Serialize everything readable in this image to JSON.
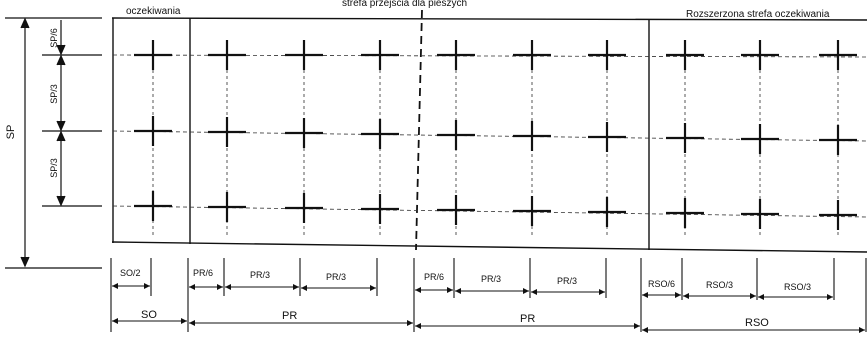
{
  "headings": {
    "waiting_zone": "oczekiwania",
    "crossing_zone": "strefa przejścia dla pieszych",
    "extended_zone": "Rozszerzona strefa oczekiwania"
  },
  "left_dimensions": {
    "total": "SP",
    "top": "SP/6",
    "middle": "SP/3",
    "bottom": "SP/3"
  },
  "bottom_small_dimensions": {
    "so_half": "SO/2",
    "pr_sixth_a": "PR/6",
    "pr_third_a1": "PR/3",
    "pr_third_a2": "PR/3",
    "pr_sixth_b": "PR/6",
    "pr_third_b1": "PR/3",
    "pr_third_b2": "PR/3",
    "rso_sixth": "RSO/6",
    "rso_third_1": "RSO/3",
    "rso_third_2": "RSO/3"
  },
  "bottom_large_dimensions": {
    "so": "SO",
    "pr_a": "PR",
    "pr_b": "PR",
    "rso": "RSO"
  }
}
